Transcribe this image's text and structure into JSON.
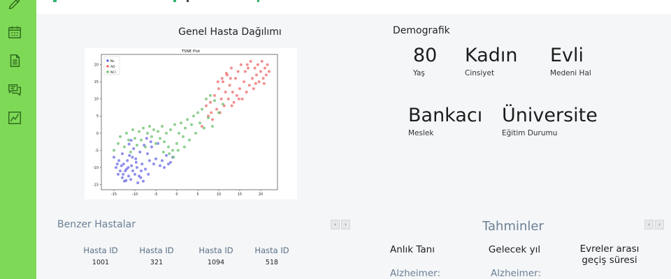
{
  "sidebar": {
    "icons": [
      "pencil-icon",
      "calendar-icon",
      "document-icon",
      "chat-icon",
      "chart-icon"
    ],
    "color": "#7ed957"
  },
  "distribution": {
    "title": "Genel Hasta Dağılımı"
  },
  "chart_data": {
    "type": "scatter",
    "title": "TSNE Plot",
    "xlim": [
      -18,
      24
    ],
    "ylim": [
      -16.5,
      23
    ],
    "xticks": [
      -15,
      -10,
      -5,
      0,
      5,
      10,
      15,
      20
    ],
    "yticks": [
      -15,
      -10,
      -5,
      0,
      5,
      10,
      15,
      20
    ],
    "legend": "top-left",
    "series": [
      {
        "name": "NL",
        "color": "#6a6ae8",
        "points": [
          [
            -15,
            -7
          ],
          [
            -14.5,
            -10
          ],
          [
            -14,
            -12
          ],
          [
            -13.8,
            -8
          ],
          [
            -13.5,
            -11
          ],
          [
            -13,
            -13
          ],
          [
            -13,
            -6
          ],
          [
            -12.7,
            -9
          ],
          [
            -12.5,
            -14
          ],
          [
            -12.3,
            -11
          ],
          [
            -12,
            -10.5
          ],
          [
            -11.8,
            -8
          ],
          [
            -11.5,
            -12.5
          ],
          [
            -11.3,
            -6.5
          ],
          [
            -11,
            -13.5
          ],
          [
            -10.8,
            -9.5
          ],
          [
            -10.5,
            -11
          ],
          [
            -10.3,
            -4.5
          ],
          [
            -10,
            -12
          ],
          [
            -9.8,
            -7.5
          ],
          [
            -9.5,
            -10
          ],
          [
            -9.3,
            -14.5
          ],
          [
            -9,
            -12.5
          ],
          [
            -8.8,
            -5.5
          ],
          [
            -8.5,
            -11
          ],
          [
            -8.3,
            -9
          ],
          [
            -8,
            -14
          ],
          [
            -7.8,
            -3.5
          ],
          [
            -7.5,
            -10.5
          ],
          [
            -7,
            -6
          ],
          [
            -6.8,
            -12
          ],
          [
            -6.5,
            -8
          ],
          [
            -6,
            -4
          ],
          [
            -5.5,
            -9
          ],
          [
            -5,
            -7.5
          ],
          [
            -4.5,
            -3
          ],
          [
            -4,
            -9.5
          ],
          [
            -3.5,
            -8
          ],
          [
            -3,
            -10
          ],
          [
            -2.5,
            -6.5
          ],
          [
            -2,
            -9
          ],
          [
            -1.5,
            -8.5
          ],
          [
            -1,
            -7
          ],
          [
            -13.2,
            -9.5
          ],
          [
            -12.8,
            -12
          ],
          [
            -11.6,
            -10
          ],
          [
            -10.6,
            -7
          ],
          [
            -9.7,
            -8.5
          ],
          [
            -8.6,
            -13
          ],
          [
            -14.2,
            -9
          ],
          [
            -12.1,
            -13.8
          ],
          [
            -7.2,
            -1.5
          ],
          [
            -6.2,
            -2.5
          ],
          [
            -11.4,
            -3.2
          ],
          [
            -10.9,
            -2.1
          ]
        ]
      },
      {
        "name": "AD",
        "color": "#ee6b6b",
        "points": [
          [
            6,
            2
          ],
          [
            7,
            8
          ],
          [
            7.5,
            5
          ],
          [
            8,
            9
          ],
          [
            8.5,
            4
          ],
          [
            9,
            11
          ],
          [
            9.5,
            7
          ],
          [
            10,
            13
          ],
          [
            10.3,
            6
          ],
          [
            10.6,
            10
          ],
          [
            11,
            15
          ],
          [
            11.3,
            8
          ],
          [
            11.6,
            12
          ],
          [
            12,
            17
          ],
          [
            12.3,
            10
          ],
          [
            12.6,
            14
          ],
          [
            13,
            19
          ],
          [
            13.3,
            12
          ],
          [
            13.6,
            9
          ],
          [
            14,
            16
          ],
          [
            14.3,
            11
          ],
          [
            14.6,
            18
          ],
          [
            15,
            13
          ],
          [
            15.3,
            20
          ],
          [
            15.6,
            10
          ],
          [
            16,
            15
          ],
          [
            16.3,
            18
          ],
          [
            16.6,
            12
          ],
          [
            17,
            19
          ],
          [
            17.3,
            14
          ],
          [
            17.6,
            21
          ],
          [
            18,
            16
          ],
          [
            18.3,
            13
          ],
          [
            18.6,
            19
          ],
          [
            19,
            17
          ],
          [
            19.3,
            20
          ],
          [
            19.6,
            15
          ],
          [
            20,
            18
          ],
          [
            20.3,
            21
          ],
          [
            20.6,
            16
          ],
          [
            21,
            19
          ],
          [
            21.3,
            17
          ],
          [
            21.6,
            20
          ],
          [
            22,
            18
          ],
          [
            14.8,
            10
          ],
          [
            12.8,
            16
          ],
          [
            16.8,
            20
          ],
          [
            18.8,
            14.5
          ],
          [
            20.8,
            14.5
          ],
          [
            10.8,
            16
          ],
          [
            9.8,
            15
          ],
          [
            11.8,
            17.5
          ],
          [
            8.2,
            6
          ],
          [
            13.1,
            8
          ]
        ]
      },
      {
        "name": "NCI",
        "color": "#6cbf6c",
        "points": [
          [
            -15,
            -5
          ],
          [
            -14,
            -3
          ],
          [
            -13.5,
            -1
          ],
          [
            -12.5,
            -4
          ],
          [
            -12,
            0
          ],
          [
            -11.5,
            -2
          ],
          [
            -11,
            -5.5
          ],
          [
            -10.5,
            1
          ],
          [
            -10,
            -1.5
          ],
          [
            -9.5,
            -3.5
          ],
          [
            -9,
            0.5
          ],
          [
            -8.5,
            -2
          ],
          [
            -8,
            1.5
          ],
          [
            -7.5,
            -4
          ],
          [
            -7,
            0
          ],
          [
            -6.5,
            2
          ],
          [
            -6,
            -1
          ],
          [
            -5.5,
            1
          ],
          [
            -5,
            -3
          ],
          [
            -4.5,
            0.5
          ],
          [
            -4,
            -1.5
          ],
          [
            -3.5,
            2
          ],
          [
            -3,
            -2.5
          ],
          [
            -2.5,
            0
          ],
          [
            -2,
            -4
          ],
          [
            -1.5,
            1
          ],
          [
            -1,
            -5
          ],
          [
            -0.5,
            2.5
          ],
          [
            0,
            -3
          ],
          [
            0.5,
            0
          ],
          [
            1,
            3
          ],
          [
            1.5,
            -1
          ],
          [
            2,
            1.5
          ],
          [
            2.5,
            4
          ],
          [
            3,
            -2
          ],
          [
            3.5,
            2.5
          ],
          [
            4,
            5
          ],
          [
            4.5,
            0
          ],
          [
            5,
            6
          ],
          [
            5.5,
            3
          ],
          [
            6,
            7
          ],
          [
            6.5,
            1.5
          ],
          [
            7,
            10
          ],
          [
            7.5,
            4.5
          ],
          [
            8,
            11
          ],
          [
            8.5,
            2
          ],
          [
            9,
            9.5
          ],
          [
            10,
            6
          ],
          [
            11,
            8.5
          ],
          [
            -0.8,
            -7
          ],
          [
            -1.8,
            -6
          ],
          [
            0.3,
            -5
          ],
          [
            -3.2,
            -5.5
          ],
          [
            1.8,
            -4
          ]
        ]
      }
    ]
  },
  "demographics": {
    "title": "Demografik",
    "age": {
      "value": "80",
      "label": "Yaş"
    },
    "gender": {
      "value": "Kadın",
      "label": "Cinsiyet"
    },
    "marital": {
      "value": "Evli",
      "label": "Medeni Hal"
    },
    "job": {
      "value": "Bankacı",
      "label": "Meslek"
    },
    "education": {
      "value": "Üniversite",
      "label": "Eğitim Durumu"
    }
  },
  "similar": {
    "title": "Benzer Hastalar",
    "pager": {
      "prev": "‹",
      "next": "›"
    },
    "columns": [
      {
        "header": "Hasta ID",
        "value": "1001"
      },
      {
        "header": "Hasta ID",
        "value": "321"
      },
      {
        "header": "Hasta ID",
        "value": "1094"
      },
      {
        "header": "Hasta ID",
        "value": "518"
      }
    ]
  },
  "predictions": {
    "title": "Tahminler",
    "pager": {
      "prev": "‹",
      "next": "›"
    },
    "columns": [
      {
        "header": "Anlık Tanı",
        "sub": "Alzheimer:"
      },
      {
        "header": "Gelecek yıl",
        "sub": "Alzheimer:"
      },
      {
        "header": "Evreler arası\ngeçiş süresi",
        "sub": ""
      }
    ]
  }
}
